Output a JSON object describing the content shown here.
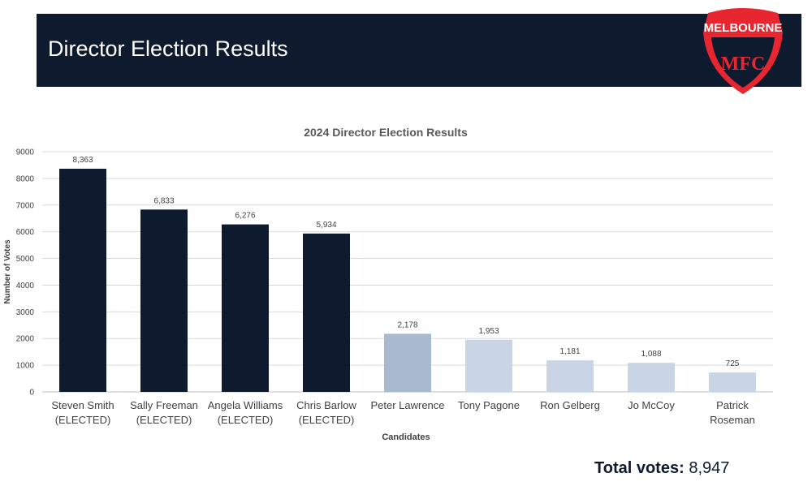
{
  "header": {
    "title": "Director Election Results",
    "logo_text": "MELBOURNE",
    "logo_monogram": "MFC"
  },
  "colors": {
    "banner_bg": "#0e1a2e",
    "elected_bar": "#0e1a2e",
    "bar_second": "#a9b9d0",
    "bar_light": "#c9d5e5",
    "logo_red": "#e8262f",
    "logo_navy": "#0e1a2e"
  },
  "chart_data": {
    "type": "bar",
    "title": "2024 Director Election Results",
    "xlabel": "Candidates",
    "ylabel": "Number of Votes",
    "ylim": [
      0,
      9000
    ],
    "yticks": [
      0,
      1000,
      2000,
      3000,
      4000,
      5000,
      6000,
      7000,
      8000,
      9000
    ],
    "grid": true,
    "categories": [
      [
        "Steven Smith",
        "(ELECTED)"
      ],
      [
        "Sally Freeman",
        "(ELECTED)"
      ],
      [
        "Angela Williams",
        "(ELECTED)"
      ],
      [
        "Chris Barlow",
        "(ELECTED)"
      ],
      [
        "Peter Lawrence"
      ],
      [
        "Tony Pagone"
      ],
      [
        "Ron Gelberg"
      ],
      [
        "Jo McCoy"
      ],
      [
        "Patrick",
        "Roseman"
      ]
    ],
    "values": [
      8363,
      6833,
      6276,
      5934,
      2178,
      1953,
      1181,
      1088,
      725
    ],
    "data_labels": [
      "8,363",
      "6,833",
      "6,276",
      "5,934",
      "2,178",
      "1,953",
      "1,181",
      "1,088",
      "725"
    ],
    "elected": [
      true,
      true,
      true,
      true,
      false,
      false,
      false,
      false,
      false
    ]
  },
  "summary": {
    "total_label": "Total votes:",
    "total_value": "8,947"
  }
}
